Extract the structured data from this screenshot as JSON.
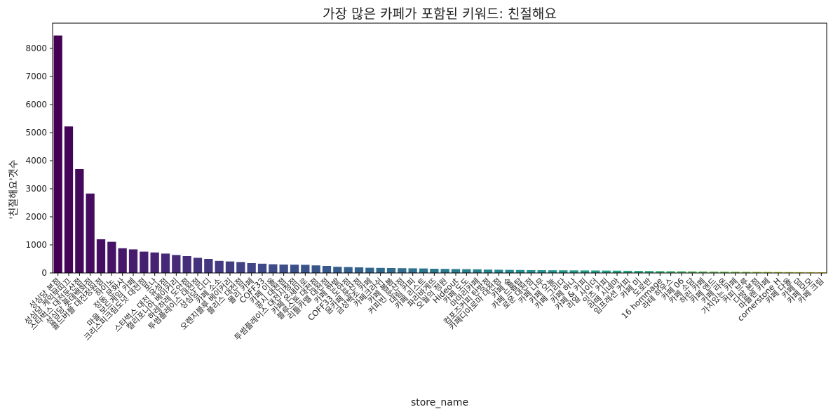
{
  "chart_data": {
    "type": "bar",
    "title": "가장 많은 카페가 포함된 키워드: 친절해요",
    "xlabel": "store_name",
    "ylabel": "'친절해요'갯수",
    "ylim": [
      0,
      8900
    ],
    "yticks": [
      0,
      1000,
      2000,
      3000,
      4000,
      5000,
      6000,
      7000,
      8000
    ],
    "grid": false,
    "colormap": "viridis",
    "categories": [
      "성심당 본점",
      "성심당 케익부띠끄",
      "스타벅스 대전둔산점",
      "성심당 롯데백화점",
      "콜드버블 대전정원점",
      "하이노",
      "정동 문화사",
      "마을 보드게임 카페",
      "크리스피크림도넛 대전점",
      "포나",
      "스타벅스 대전 유성점",
      "캘리포니아 베이커리",
      "하레하레 도안점",
      "투썸플레이스 대전점",
      "성심당 디디",
      "카페 소소",
      "오렌지블루 베이커리",
      "블리스 대전점",
      "몰리 카페",
      "COFF33",
      "카페 이올",
      "콩시 대전점",
      "투썸플레이스 대전시청점",
      "카페 온새미로",
      "블루스톤 대전점",
      "리틀카멜 대전점",
      "카페 한밭",
      "COFF33 도안점",
      "윤카페 둔산점",
      "금성백조 카페",
      "카페크라쉬",
      "카페 봄봄",
      "커피빈 둔산점",
      "대림 커피",
      "카페 리스트",
      "파리바게뜨",
      "오월의 정원",
      "Hideout",
      "카페 도도",
      "마마리카페",
      "컴포즈커피 탄방점",
      "카페디아로마 대전점",
      "카페 숲",
      "카페 드롭탑",
      "로운 대전점",
      "카페 나무",
      "카페 오늘",
      "카페 그리다",
      "카페 하나",
      "카페 & 커피",
      "리얼 사이더",
      "잇츠 커피",
      "라떼 시네마",
      "임프레션 커피",
      "카페 미",
      "도로반",
      "16 hommage",
      "라테 하우스",
      "카페 06",
      "카페 소담",
      "하린 카페",
      "카페 앤드",
      "카페 라온",
      "가치있는 카페",
      "커피 브루",
      "다방 본점",
      "마들렌 카페",
      "cornerstone H",
      "카페 다올",
      "카페 담",
      "카페 모모",
      "카페 크림"
    ],
    "values": [
      8460,
      5220,
      3700,
      2830,
      1200,
      1110,
      880,
      840,
      760,
      730,
      690,
      640,
      600,
      540,
      500,
      430,
      410,
      390,
      350,
      330,
      310,
      300,
      295,
      290,
      270,
      250,
      220,
      210,
      200,
      185,
      180,
      175,
      170,
      165,
      160,
      150,
      145,
      140,
      135,
      130,
      120,
      115,
      110,
      105,
      100,
      98,
      96,
      94,
      92,
      90,
      88,
      85,
      82,
      78,
      75,
      72,
      68,
      65,
      62,
      58,
      55,
      52,
      50,
      48,
      45,
      42,
      40,
      38,
      35,
      32,
      30,
      28
    ]
  }
}
